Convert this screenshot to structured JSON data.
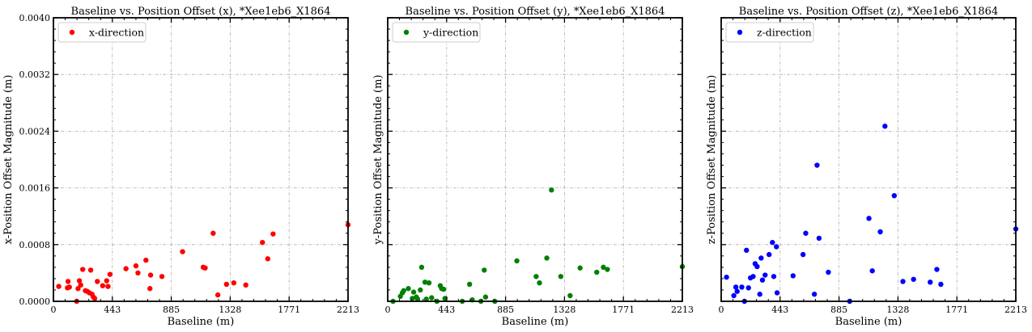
{
  "chart_data": [
    {
      "type": "scatter",
      "title": "Baseline vs. Position Offset (x), *Xee1eb6_X1864",
      "xlabel": "Baseline (m)",
      "ylabel": "x-Position Offset Magnitude (m)",
      "xlim": [
        0,
        2213
      ],
      "ylim": [
        0,
        0.004
      ],
      "xticks": [
        "0",
        "443",
        "885",
        "1328",
        "1771",
        "2213"
      ],
      "yticks": [
        "0.0000",
        "0.0008",
        "0.0016",
        "0.0024",
        "0.0032",
        "0.0040"
      ],
      "show_yticklabels": true,
      "grid": true,
      "legend_loc": "upper-left",
      "series": [
        {
          "name": "x-direction",
          "color": "#ff0000",
          "x": [
            40,
            105,
            110,
            120,
            175,
            185,
            195,
            205,
            220,
            240,
            255,
            270,
            280,
            290,
            300,
            310,
            330,
            370,
            400,
            410,
            425,
            545,
            620,
            635,
            695,
            725,
            730,
            815,
            970,
            1125,
            1140,
            1200,
            1235,
            1300,
            1355,
            1445,
            1570,
            1610,
            1650,
            2213
          ],
          "y": [
            0.00021,
            0.00019,
            0.00028,
            0.0002,
            0.0,
            0.00018,
            0.00029,
            0.00023,
            0.00045,
            0.00015,
            0.00014,
            0.00012,
            0.00044,
            0.0001,
            6e-05,
            4e-05,
            0.00028,
            0.00022,
            0.00029,
            0.00021,
            0.00038,
            0.00046,
            0.0005,
            0.0004,
            0.00058,
            0.00018,
            0.00037,
            0.00035,
            0.0007,
            0.00048,
            0.00047,
            0.00096,
            9e-05,
            0.00024,
            0.00026,
            0.00023,
            0.00083,
            0.0006,
            0.00095,
            0.00108
          ]
        }
      ]
    },
    {
      "type": "scatter",
      "title": "Baseline vs. Position Offset (y), *Xee1eb6_X1864",
      "xlabel": "Baseline (m)",
      "ylabel": "y-Position Offset Magnitude (m)",
      "xlim": [
        0,
        2213
      ],
      "ylim": [
        0,
        0.004
      ],
      "xticks": [
        "0",
        "443",
        "885",
        "1328",
        "1771",
        "2213"
      ],
      "yticks": [
        "",
        "",
        "",
        "",
        "",
        ""
      ],
      "show_yticklabels": false,
      "grid": true,
      "legend_loc": "upper-left",
      "series": [
        {
          "name": "y-direction",
          "color": "#008000",
          "x": [
            40,
            95,
            110,
            120,
            155,
            185,
            195,
            215,
            225,
            245,
            255,
            280,
            290,
            310,
            330,
            370,
            395,
            405,
            420,
            430,
            560,
            615,
            635,
            700,
            725,
            735,
            805,
            970,
            1115,
            1140,
            1195,
            1230,
            1300,
            1370,
            1445,
            1570,
            1620,
            1650,
            2213
          ],
          "y": [
            0.0,
            7e-05,
            0.00012,
            0.00015,
            0.00018,
            4e-05,
            0.00013,
            6e-05,
            3e-05,
            0.00016,
            0.00048,
            0.00027,
            3e-05,
            0.00026,
            5e-05,
            0.0,
            0.00022,
            0.00018,
            0.00017,
            4e-05,
            0.0,
            0.00024,
            2e-05,
            0.0,
            0.00044,
            6e-05,
            0.0,
            0.00057,
            0.00035,
            0.00026,
            0.00061,
            0.00157,
            0.00035,
            8e-05,
            0.00047,
            0.00041,
            0.00048,
            0.00045,
            0.00049
          ]
        }
      ]
    },
    {
      "type": "scatter",
      "title": "Baseline vs. Position Offset (z), *Xee1eb6_X1864",
      "xlabel": "Baseline (m)",
      "ylabel": "z-Position Offset Magnitude (m)",
      "xlim": [
        0,
        2213
      ],
      "ylim": [
        0,
        0.004
      ],
      "xticks": [
        "0",
        "443",
        "885",
        "1328",
        "1771",
        "2213"
      ],
      "yticks": [
        "",
        "",
        "",
        "",
        "",
        ""
      ],
      "show_yticklabels": false,
      "grid": true,
      "legend_loc": "upper-left",
      "series": [
        {
          "name": "z-direction",
          "color": "#0000ff",
          "x": [
            40,
            95,
            110,
            120,
            155,
            175,
            190,
            205,
            220,
            240,
            255,
            270,
            290,
            300,
            310,
            330,
            360,
            385,
            395,
            415,
            420,
            540,
            615,
            635,
            700,
            720,
            735,
            805,
            965,
            1110,
            1135,
            1195,
            1230,
            1300,
            1365,
            1445,
            1570,
            1620,
            1650,
            2213
          ],
          "y": [
            0.00034,
            8e-05,
            0.0002,
            0.00014,
            0.0002,
            0.0,
            0.00072,
            0.00019,
            0.00033,
            0.00035,
            0.00053,
            0.00049,
            0.0001,
            0.00061,
            0.0003,
            0.00037,
            0.00066,
            0.00083,
            0.00035,
            0.00077,
            0.00012,
            0.00036,
            0.00066,
            0.00096,
            0.0001,
            0.00192,
            0.00089,
            0.00041,
            0.0,
            0.00117,
            0.00043,
            0.00098,
            0.00247,
            0.00149,
            0.00028,
            0.00031,
            0.00027,
            0.00045,
            0.00024,
            0.00102
          ]
        }
      ]
    }
  ]
}
